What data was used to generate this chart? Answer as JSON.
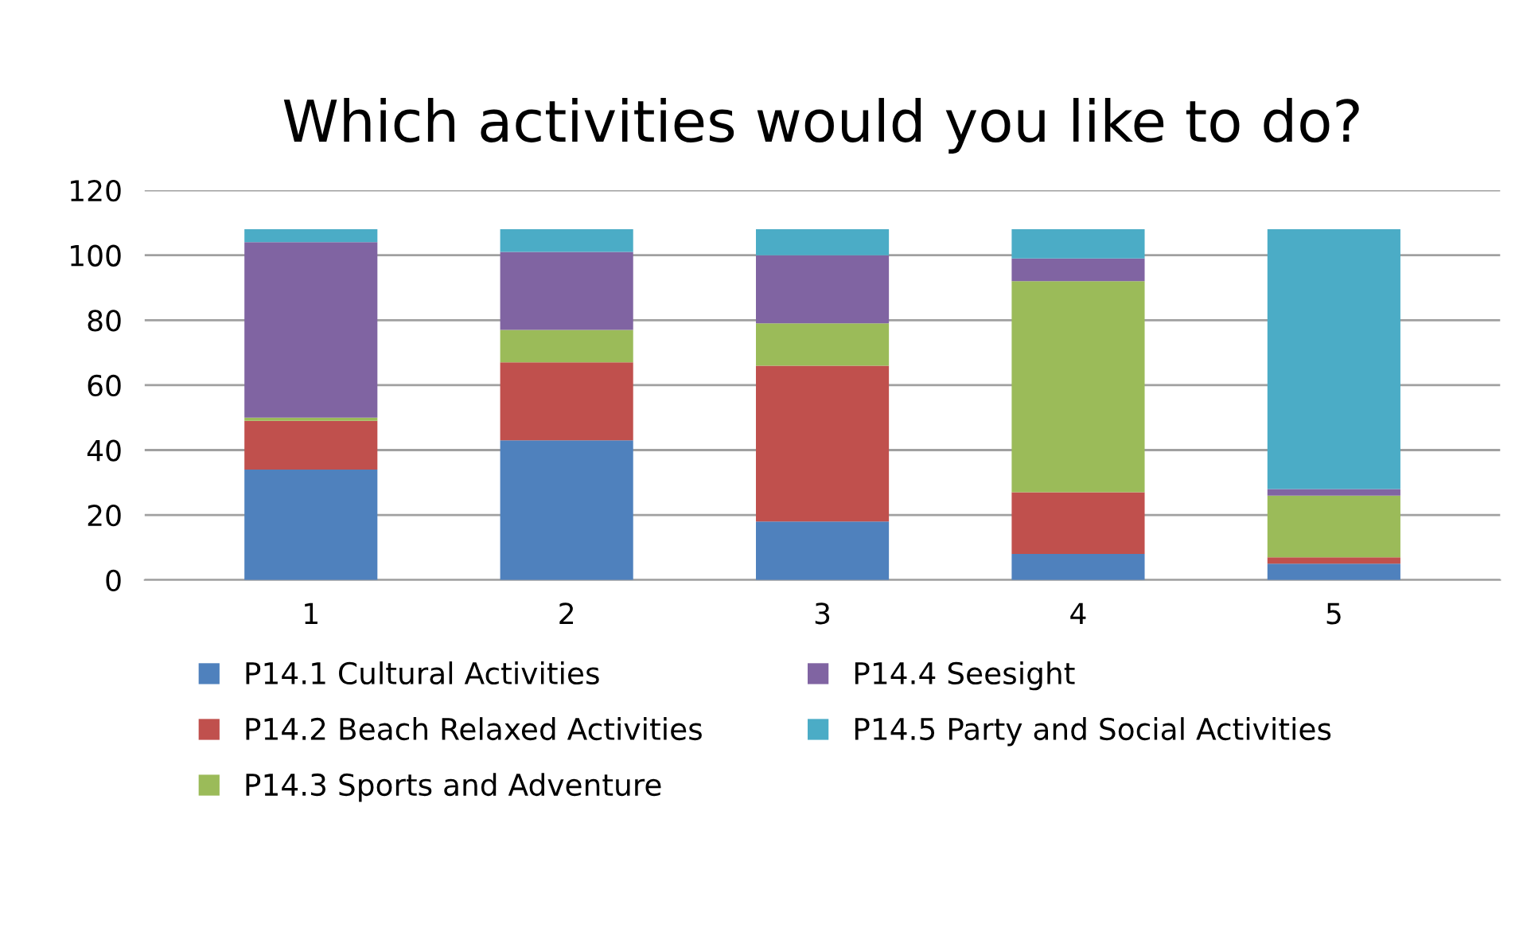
{
  "chart_data": {
    "type": "bar",
    "stacked": true,
    "title": "Which activities would you like to do?",
    "categories": [
      "1",
      "2",
      "3",
      "4",
      "5"
    ],
    "series": [
      {
        "name": "P14.1 Cultural Activities",
        "color": "#4f81bd",
        "values": [
          34,
          43,
          18,
          8,
          5
        ]
      },
      {
        "name": "P14.2 Beach Relaxed Activities",
        "color": "#c0504d",
        "values": [
          15,
          24,
          48,
          19,
          2
        ]
      },
      {
        "name": "P14.3 Sports and Adventure",
        "color": "#9bbb59",
        "values": [
          1,
          10,
          13,
          65,
          19
        ]
      },
      {
        "name": "P14.4 Seesight",
        "color": "#8064a2",
        "values": [
          54,
          24,
          21,
          7,
          2
        ]
      },
      {
        "name": "P14.5 Party and Social Activities",
        "color": "#4bacc6",
        "values": [
          4,
          7,
          8,
          9,
          80
        ]
      }
    ],
    "ylim": [
      0,
      120
    ],
    "yticks": [
      0,
      20,
      40,
      60,
      80,
      100,
      120
    ],
    "grid": "y",
    "legend": "bottom"
  }
}
